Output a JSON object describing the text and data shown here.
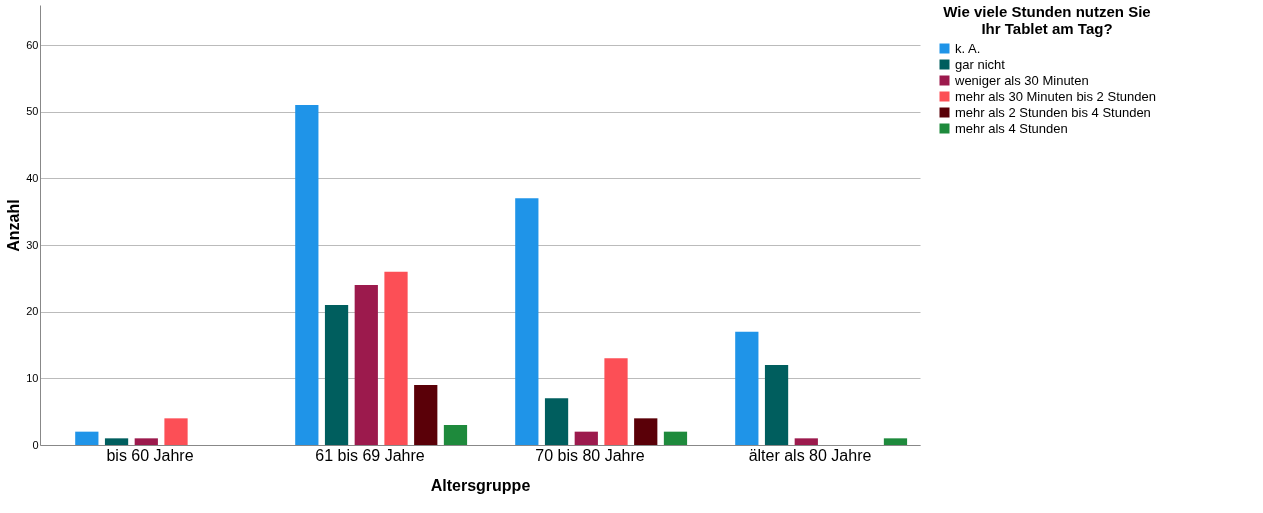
{
  "chart_data": {
    "type": "bar",
    "xlabel": "Altersgruppe",
    "ylabel": "Anzahl",
    "legend_title": "Wie viele Stunden nutzen Sie Ihr Tablet am Tag?",
    "legend": "top right",
    "grid": "y",
    "ylim": [
      0,
      66
    ],
    "yticks": [
      0,
      10,
      20,
      30,
      40,
      50,
      60
    ],
    "categories": [
      "bis 60 Jahre",
      "61 bis 69 Jahre",
      "70 bis 80 Jahre",
      "älter als 80 Jahre"
    ],
    "series": [
      {
        "name": "k. A.",
        "color": "#1f94e8",
        "values": [
          2,
          51,
          37,
          17
        ]
      },
      {
        "name": "gar nicht",
        "color": "#005e5e",
        "values": [
          1,
          21,
          7,
          12
        ]
      },
      {
        "name": "weniger als 30 Minuten",
        "color": "#9c1a4d",
        "values": [
          1,
          24,
          2,
          1
        ]
      },
      {
        "name": "mehr als 30 Minuten bis 2 Stunden",
        "color": "#fc4f56",
        "values": [
          4,
          26,
          13,
          null
        ]
      },
      {
        "name": "mehr als 2 Stunden bis 4 Stunden",
        "color": "#5a0008",
        "values": [
          null,
          9,
          4,
          null
        ]
      },
      {
        "name": "mehr als 4 Stunden",
        "color": "#1e8a3c",
        "values": [
          null,
          3,
          2,
          1
        ]
      }
    ]
  }
}
